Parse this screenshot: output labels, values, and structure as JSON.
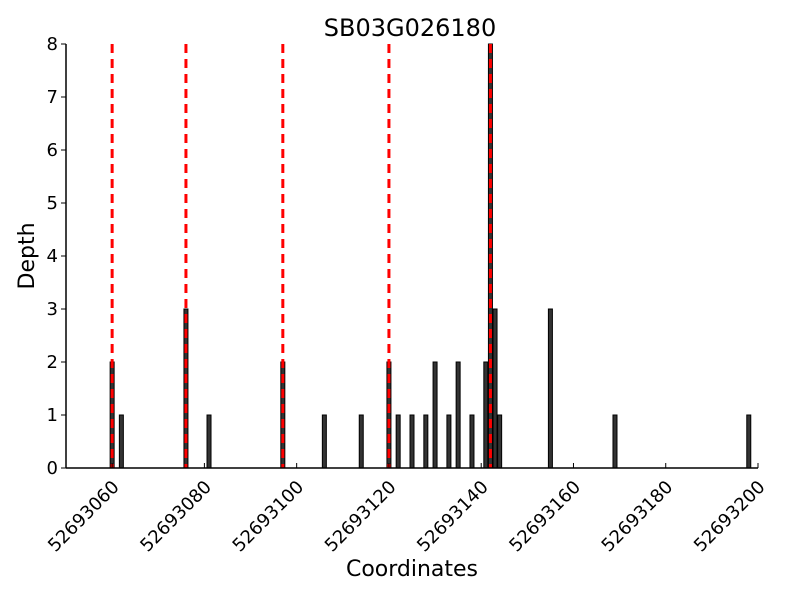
{
  "chart_data": {
    "type": "bar",
    "title": "SB03G026180",
    "xlabel": "Coordinates",
    "ylabel": "Depth",
    "xlim": [
      52693050,
      52693200
    ],
    "ylim": [
      0,
      8
    ],
    "xticks": [
      52693060,
      52693080,
      52693100,
      52693120,
      52693140,
      52693160,
      52693180,
      52693200
    ],
    "yticks": [
      0,
      1,
      2,
      3,
      4,
      5,
      6,
      7,
      8
    ],
    "bar_color": "#333333",
    "marker_color": "#ff0000",
    "grid": false,
    "bars": [
      {
        "x": 52693060,
        "y": 2
      },
      {
        "x": 52693062,
        "y": 1
      },
      {
        "x": 52693076,
        "y": 3
      },
      {
        "x": 52693081,
        "y": 1
      },
      {
        "x": 52693097,
        "y": 2
      },
      {
        "x": 52693106,
        "y": 1
      },
      {
        "x": 52693114,
        "y": 1
      },
      {
        "x": 52693120,
        "y": 2
      },
      {
        "x": 52693122,
        "y": 1
      },
      {
        "x": 52693125,
        "y": 1
      },
      {
        "x": 52693128,
        "y": 1
      },
      {
        "x": 52693130,
        "y": 2
      },
      {
        "x": 52693133,
        "y": 1
      },
      {
        "x": 52693135,
        "y": 2
      },
      {
        "x": 52693138,
        "y": 1
      },
      {
        "x": 52693141,
        "y": 2
      },
      {
        "x": 52693142,
        "y": 8
      },
      {
        "x": 52693143,
        "y": 3
      },
      {
        "x": 52693144,
        "y": 1
      },
      {
        "x": 52693155,
        "y": 3
      },
      {
        "x": 52693169,
        "y": 1
      },
      {
        "x": 52693198,
        "y": 1
      }
    ],
    "markers": [
      52693060,
      52693076,
      52693097,
      52693120,
      52693142
    ]
  }
}
